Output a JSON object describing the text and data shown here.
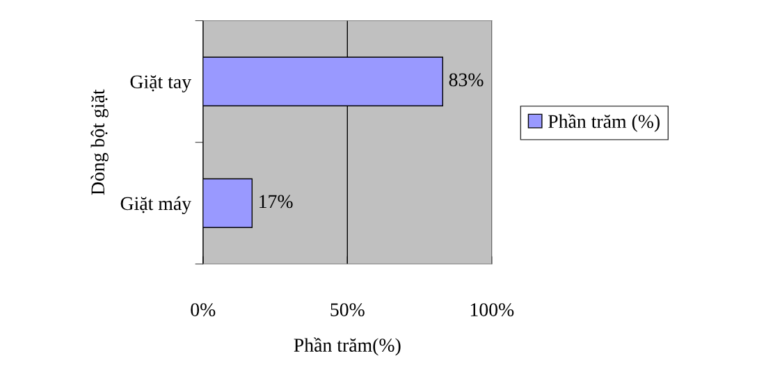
{
  "chart_data": {
    "type": "bar",
    "orientation": "horizontal",
    "categories": [
      "Giặt tay",
      "Giặt máy"
    ],
    "series": [
      {
        "name": "Phần trăm (%)",
        "color": "#9999ff",
        "values": [
          83,
          17
        ],
        "value_labels": [
          "83%",
          "17%"
        ]
      }
    ],
    "xlim": [
      0,
      100
    ],
    "xticks": [
      {
        "value": 0,
        "label": "0%"
      },
      {
        "value": 50,
        "label": "50%"
      },
      {
        "value": 100,
        "label": "100%"
      }
    ],
    "xlabel": "Phần trăm(%)",
    "ylabel": "Dòng bột giặt",
    "grid": "x",
    "legend": "right"
  }
}
